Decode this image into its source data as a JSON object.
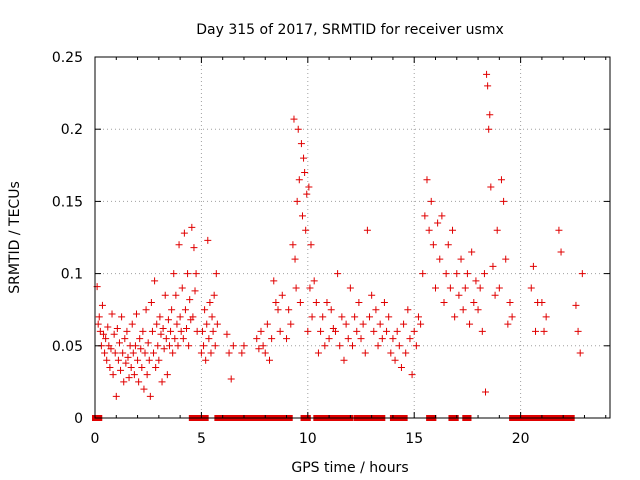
{
  "chart_data": {
    "type": "scatter",
    "title": "Day 315 of 2017, SRMTID for receiver usmx",
    "xlabel": "GPS time / hours",
    "ylabel": "SRMTID / TECUs",
    "xlim": [
      0,
      24.2
    ],
    "ylim": [
      0,
      0.25
    ],
    "xticks": [
      0,
      5,
      10,
      15,
      20
    ],
    "xtick_labels": [
      "0",
      "5",
      "10",
      "15",
      "20"
    ],
    "yticks": [
      0,
      0.05,
      0.1,
      0.15,
      0.2,
      0.25
    ],
    "ytick_labels": [
      "0",
      "0.05",
      "0.1",
      "0.15",
      "0.2",
      "0.25"
    ],
    "grid": true,
    "marker": "+",
    "color": "#e00000",
    "series": [
      {
        "name": "SRMTID",
        "points": [
          [
            0.1,
            0.091
          ],
          [
            0.15,
            0.065
          ],
          [
            0.2,
            0.07
          ],
          [
            0.25,
            0.06
          ],
          [
            0.3,
            0.05
          ],
          [
            0.35,
            0.078
          ],
          [
            0.4,
            0.058
          ],
          [
            0.45,
            0.045
          ],
          [
            0.5,
            0.055
          ],
          [
            0.55,
            0.04
          ],
          [
            0.6,
            0.063
          ],
          [
            0.65,
            0.05
          ],
          [
            0.7,
            0.035
          ],
          [
            0.75,
            0.048
          ],
          [
            0.8,
            0.072
          ],
          [
            0.85,
            0.03
          ],
          [
            0.9,
            0.058
          ],
          [
            0.95,
            0.045
          ],
          [
            1.0,
            0.015
          ],
          [
            1.05,
            0.062
          ],
          [
            1.1,
            0.04
          ],
          [
            1.15,
            0.052
          ],
          [
            1.2,
            0.033
          ],
          [
            1.25,
            0.07
          ],
          [
            1.3,
            0.045
          ],
          [
            1.35,
            0.025
          ],
          [
            1.4,
            0.055
          ],
          [
            1.45,
            0.038
          ],
          [
            1.5,
            0.06
          ],
          [
            1.55,
            0.042
          ],
          [
            1.6,
            0.028
          ],
          [
            1.65,
            0.05
          ],
          [
            1.7,
            0.035
          ],
          [
            1.75,
            0.065
          ],
          [
            1.8,
            0.045
          ],
          [
            1.85,
            0.03
          ],
          [
            1.9,
            0.05
          ],
          [
            1.95,
            0.072
          ],
          [
            2.0,
            0.04
          ],
          [
            2.05,
            0.025
          ],
          [
            2.1,
            0.055
          ],
          [
            2.15,
            0.048
          ],
          [
            2.2,
            0.035
          ],
          [
            2.25,
            0.06
          ],
          [
            2.3,
            0.02
          ],
          [
            2.35,
            0.045
          ],
          [
            2.4,
            0.075
          ],
          [
            2.45,
            0.03
          ],
          [
            2.5,
            0.052
          ],
          [
            2.55,
            0.04
          ],
          [
            2.6,
            0.015
          ],
          [
            2.65,
            0.08
          ],
          [
            2.7,
            0.06
          ],
          [
            2.75,
            0.045
          ],
          [
            2.8,
            0.095
          ],
          [
            2.85,
            0.035
          ],
          [
            2.9,
            0.065
          ],
          [
            2.95,
            0.05
          ],
          [
            3.0,
            0.04
          ],
          [
            3.05,
            0.07
          ],
          [
            3.1,
            0.058
          ],
          [
            3.15,
            0.025
          ],
          [
            3.2,
            0.062
          ],
          [
            3.25,
            0.048
          ],
          [
            3.3,
            0.085
          ],
          [
            3.35,
            0.055
          ],
          [
            3.4,
            0.03
          ],
          [
            3.45,
            0.068
          ],
          [
            3.5,
            0.05
          ],
          [
            3.55,
            0.06
          ],
          [
            3.6,
            0.075
          ],
          [
            3.65,
            0.045
          ],
          [
            3.7,
            0.1
          ],
          [
            3.75,
            0.055
          ],
          [
            3.8,
            0.085
          ],
          [
            3.85,
            0.065
          ],
          [
            3.9,
            0.05
          ],
          [
            3.95,
            0.12
          ],
          [
            4.0,
            0.07
          ],
          [
            4.05,
            0.06
          ],
          [
            4.1,
            0.09
          ],
          [
            4.15,
            0.055
          ],
          [
            4.2,
            0.128
          ],
          [
            4.25,
            0.075
          ],
          [
            4.3,
            0.062
          ],
          [
            4.35,
            0.1
          ],
          [
            4.4,
            0.05
          ],
          [
            4.45,
            0.082
          ],
          [
            4.5,
            0.068
          ],
          [
            4.55,
            0.132
          ],
          [
            4.6,
            0.07
          ],
          [
            4.65,
            0.118
          ],
          [
            4.7,
            0.088
          ],
          [
            4.75,
            0.1
          ],
          [
            4.8,
            0.06
          ],
          [
            5.0,
            0.045
          ],
          [
            5.05,
            0.06
          ],
          [
            5.1,
            0.05
          ],
          [
            5.15,
            0.075
          ],
          [
            5.2,
            0.04
          ],
          [
            5.25,
            0.065
          ],
          [
            5.3,
            0.123
          ],
          [
            5.35,
            0.055
          ],
          [
            5.4,
            0.08
          ],
          [
            5.45,
            0.045
          ],
          [
            5.5,
            0.07
          ],
          [
            5.55,
            0.06
          ],
          [
            5.6,
            0.085
          ],
          [
            5.65,
            0.05
          ],
          [
            5.7,
            0.1
          ],
          [
            5.75,
            0.065
          ],
          [
            6.2,
            0.058
          ],
          [
            6.3,
            0.045
          ],
          [
            6.4,
            0.027
          ],
          [
            6.5,
            0.05
          ],
          [
            6.9,
            0.045
          ],
          [
            7.0,
            0.05
          ],
          [
            7.6,
            0.055
          ],
          [
            7.7,
            0.048
          ],
          [
            7.8,
            0.06
          ],
          [
            7.9,
            0.05
          ],
          [
            8.0,
            0.045
          ],
          [
            8.1,
            0.065
          ],
          [
            8.2,
            0.04
          ],
          [
            8.3,
            0.055
          ],
          [
            8.4,
            0.095
          ],
          [
            8.5,
            0.08
          ],
          [
            8.6,
            0.075
          ],
          [
            8.7,
            0.06
          ],
          [
            8.8,
            0.085
          ],
          [
            9.0,
            0.055
          ],
          [
            9.1,
            0.075
          ],
          [
            9.2,
            0.065
          ],
          [
            9.3,
            0.12
          ],
          [
            9.35,
            0.207
          ],
          [
            9.4,
            0.11
          ],
          [
            9.45,
            0.09
          ],
          [
            9.5,
            0.15
          ],
          [
            9.55,
            0.2
          ],
          [
            9.6,
            0.165
          ],
          [
            9.65,
            0.08
          ],
          [
            9.7,
            0.19
          ],
          [
            9.75,
            0.14
          ],
          [
            9.8,
            0.18
          ],
          [
            9.85,
            0.17
          ],
          [
            9.9,
            0.13
          ],
          [
            9.95,
            0.155
          ],
          [
            10.0,
            0.06
          ],
          [
            10.05,
            0.16
          ],
          [
            10.1,
            0.09
          ],
          [
            10.15,
            0.12
          ],
          [
            10.2,
            0.07
          ],
          [
            10.3,
            0.095
          ],
          [
            10.4,
            0.08
          ],
          [
            10.5,
            0.045
          ],
          [
            10.6,
            0.06
          ],
          [
            10.7,
            0.07
          ],
          [
            10.8,
            0.05
          ],
          [
            10.9,
            0.08
          ],
          [
            11.0,
            0.055
          ],
          [
            11.1,
            0.075
          ],
          [
            11.2,
            0.062
          ],
          [
            11.3,
            0.06
          ],
          [
            11.4,
            0.1
          ],
          [
            11.5,
            0.05
          ],
          [
            11.6,
            0.07
          ],
          [
            11.7,
            0.04
          ],
          [
            11.8,
            0.065
          ],
          [
            11.9,
            0.055
          ],
          [
            12.0,
            0.09
          ],
          [
            12.1,
            0.05
          ],
          [
            12.2,
            0.07
          ],
          [
            12.3,
            0.06
          ],
          [
            12.4,
            0.08
          ],
          [
            12.5,
            0.055
          ],
          [
            12.6,
            0.065
          ],
          [
            12.7,
            0.045
          ],
          [
            12.8,
            0.13
          ],
          [
            12.9,
            0.07
          ],
          [
            13.0,
            0.085
          ],
          [
            13.1,
            0.06
          ],
          [
            13.2,
            0.075
          ],
          [
            13.3,
            0.05
          ],
          [
            13.4,
            0.065
          ],
          [
            13.5,
            0.055
          ],
          [
            13.6,
            0.08
          ],
          [
            13.7,
            0.06
          ],
          [
            13.8,
            0.07
          ],
          [
            13.9,
            0.045
          ],
          [
            14.0,
            0.055
          ],
          [
            14.1,
            0.04
          ],
          [
            14.2,
            0.06
          ],
          [
            14.3,
            0.05
          ],
          [
            14.4,
            0.035
          ],
          [
            14.5,
            0.065
          ],
          [
            14.6,
            0.045
          ],
          [
            14.7,
            0.075
          ],
          [
            14.8,
            0.055
          ],
          [
            14.9,
            0.03
          ],
          [
            15.0,
            0.06
          ],
          [
            15.1,
            0.05
          ],
          [
            15.2,
            0.07
          ],
          [
            15.3,
            0.065
          ],
          [
            15.4,
            0.1
          ],
          [
            15.5,
            0.14
          ],
          [
            15.6,
            0.165
          ],
          [
            15.7,
            0.13
          ],
          [
            15.8,
            0.15
          ],
          [
            15.9,
            0.12
          ],
          [
            16.0,
            0.09
          ],
          [
            16.1,
            0.135
          ],
          [
            16.2,
            0.11
          ],
          [
            16.3,
            0.14
          ],
          [
            16.4,
            0.08
          ],
          [
            16.5,
            0.1
          ],
          [
            16.6,
            0.12
          ],
          [
            16.7,
            0.09
          ],
          [
            16.8,
            0.13
          ],
          [
            16.9,
            0.07
          ],
          [
            17.0,
            0.1
          ],
          [
            17.1,
            0.085
          ],
          [
            17.2,
            0.11
          ],
          [
            17.3,
            0.075
          ],
          [
            17.4,
            0.09
          ],
          [
            17.5,
            0.1
          ],
          [
            17.6,
            0.065
          ],
          [
            17.7,
            0.115
          ],
          [
            17.8,
            0.08
          ],
          [
            17.9,
            0.095
          ],
          [
            18.0,
            0.075
          ],
          [
            18.1,
            0.09
          ],
          [
            18.2,
            0.06
          ],
          [
            18.3,
            0.1
          ],
          [
            18.35,
            0.018
          ],
          [
            18.4,
            0.238
          ],
          [
            18.45,
            0.23
          ],
          [
            18.5,
            0.2
          ],
          [
            18.55,
            0.21
          ],
          [
            18.6,
            0.16
          ],
          [
            18.7,
            0.105
          ],
          [
            18.8,
            0.085
          ],
          [
            18.9,
            0.13
          ],
          [
            19.0,
            0.09
          ],
          [
            19.1,
            0.165
          ],
          [
            19.2,
            0.15
          ],
          [
            19.3,
            0.11
          ],
          [
            19.4,
            0.065
          ],
          [
            19.5,
            0.08
          ],
          [
            19.6,
            0.07
          ],
          [
            20.5,
            0.09
          ],
          [
            20.6,
            0.105
          ],
          [
            20.7,
            0.06
          ],
          [
            20.8,
            0.08
          ],
          [
            21.0,
            0.08
          ],
          [
            21.1,
            0.06
          ],
          [
            21.2,
            0.07
          ],
          [
            21.8,
            0.13
          ],
          [
            21.9,
            0.115
          ],
          [
            22.6,
            0.078
          ],
          [
            22.7,
            0.06
          ],
          [
            22.8,
            0.045
          ],
          [
            22.9,
            0.1
          ]
        ]
      }
    ],
    "zero_segments": [
      [
        0.0,
        0.2
      ],
      [
        4.55,
        4.75
      ],
      [
        5.0,
        5.2
      ],
      [
        5.75,
        9.15
      ],
      [
        9.8,
        10.0
      ],
      [
        10.4,
        10.6
      ],
      [
        10.75,
        11.25
      ],
      [
        11.5,
        12.0
      ],
      [
        12.3,
        12.55
      ],
      [
        12.8,
        13.1
      ],
      [
        13.3,
        13.5
      ],
      [
        14.0,
        14.15
      ],
      [
        14.4,
        14.55
      ],
      [
        15.7,
        15.9
      ],
      [
        16.75,
        16.95
      ],
      [
        17.4,
        17.55
      ],
      [
        19.6,
        22.4
      ]
    ]
  }
}
